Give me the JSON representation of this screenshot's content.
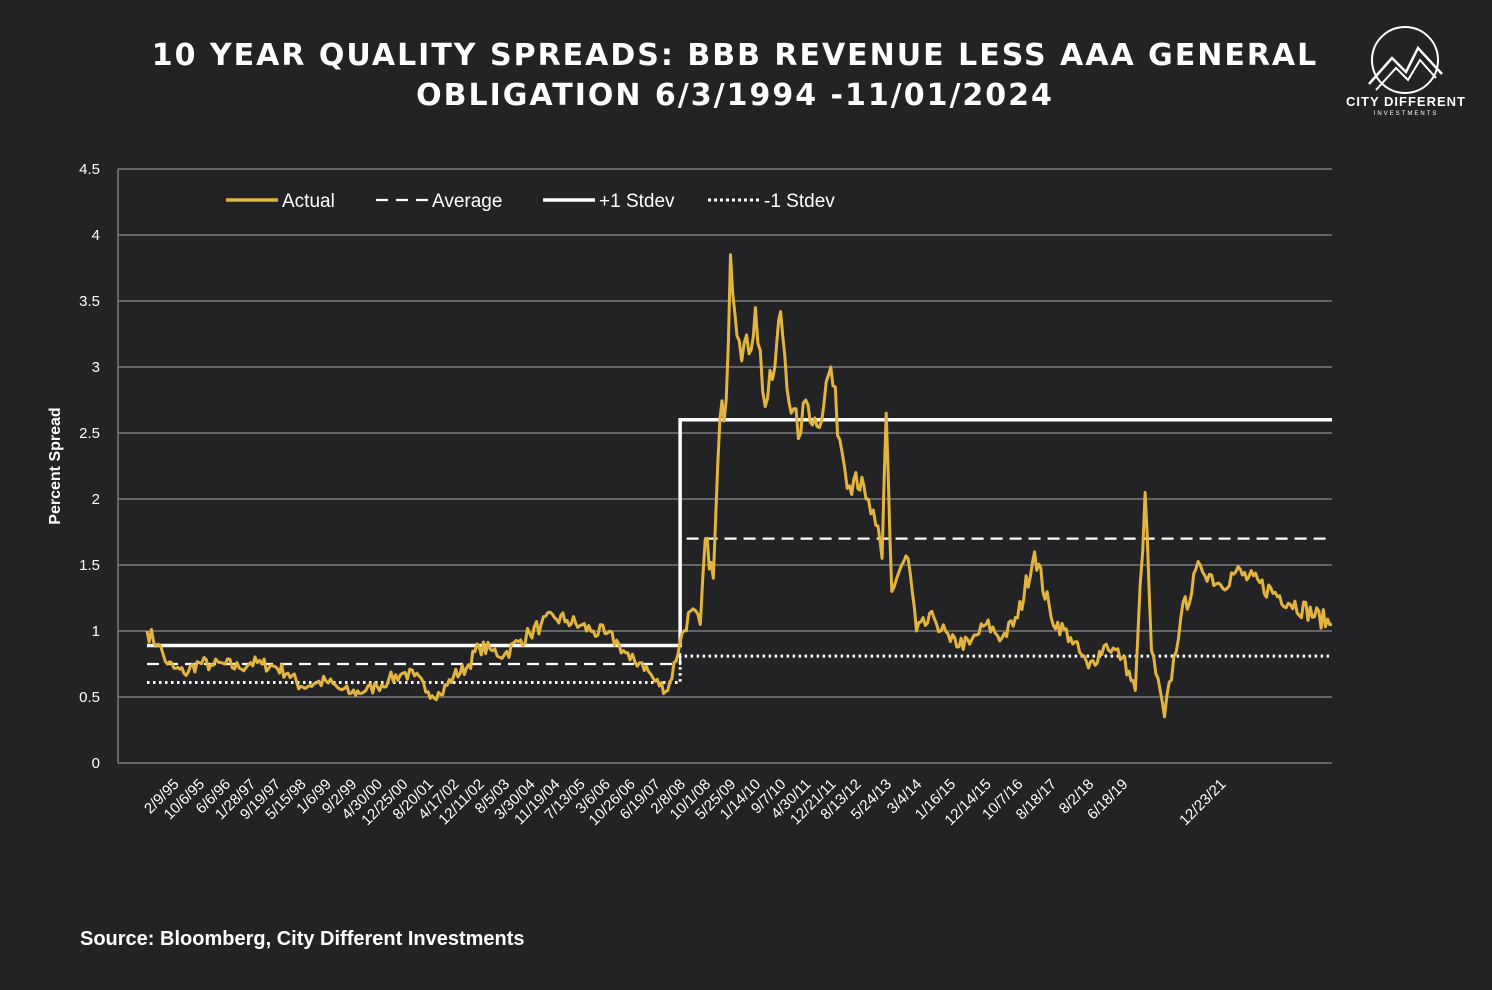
{
  "header": {
    "title_line1": "10 YEAR QUALITY SPREADS: BBB REVENUE LESS AAA GENERAL",
    "title_line2": "OBLIGATION 6/3/1994 -11/01/2024"
  },
  "logo": {
    "name": "CITY DIFFERENT",
    "sub": "INVESTMENTS"
  },
  "footer": {
    "source": "Source: Bloomberg, City Different Investments"
  },
  "colors": {
    "background": "#232326",
    "actual": "#E3B53F",
    "reference": "#FFFFFF",
    "grid": "#8A8A8E"
  },
  "chart_data": {
    "type": "line",
    "ylabel": "Percent Spread",
    "xlabel": "",
    "ylim": [
      0,
      4.5
    ],
    "yticks": [
      "0",
      "0.5",
      "1",
      "1.5",
      "2",
      "2.5",
      "3",
      "3.5",
      "4",
      "4.5"
    ],
    "grid": true,
    "legend_position": "top-left",
    "x_tick_labels": [
      "2/9/95",
      "10/6/95",
      "6/6/96",
      "1/28/97",
      "9/19/97",
      "5/15/98",
      "1/6/99",
      "9/2/99",
      "4/30/00",
      "12/25/00",
      "8/20/01",
      "4/17/02",
      "12/11/02",
      "8/5/03",
      "3/30/04",
      "11/19/04",
      "7/13/05",
      "3/6/06",
      "10/26/06",
      "6/19/07",
      "2/8/08",
      "10/1/08",
      "5/25/09",
      "1/14/10",
      "9/7/10",
      "4/30/11",
      "12/21/11",
      "8/13/12",
      "5/24/13",
      "3/4/14",
      "1/16/15",
      "12/14/15",
      "10/7/16",
      "8/18/17",
      "8/2/18",
      "6/18/19",
      "12/23/21"
    ],
    "series": [
      {
        "name": "Actual",
        "style": "solid",
        "points": [
          [
            "6/3/94",
            1.0
          ],
          [
            "9/94",
            0.9
          ],
          [
            "12/94",
            0.75
          ],
          [
            "2/9/95",
            0.72
          ],
          [
            "5/95",
            0.68
          ],
          [
            "10/6/95",
            0.76
          ],
          [
            "2/96",
            0.74
          ],
          [
            "6/6/96",
            0.75
          ],
          [
            "10/96",
            0.72
          ],
          [
            "1/28/97",
            0.76
          ],
          [
            "5/97",
            0.75
          ],
          [
            "9/19/97",
            0.73
          ],
          [
            "1/98",
            0.68
          ],
          [
            "5/15/98",
            0.58
          ],
          [
            "9/98",
            0.6
          ],
          [
            "1/6/99",
            0.62
          ],
          [
            "5/99",
            0.56
          ],
          [
            "9/2/99",
            0.53
          ],
          [
            "1/00",
            0.55
          ],
          [
            "4/30/00",
            0.58
          ],
          [
            "8/00",
            0.63
          ],
          [
            "12/25/00",
            0.68
          ],
          [
            "4/01",
            0.66
          ],
          [
            "8/20/01",
            0.54
          ],
          [
            "12/01",
            0.52
          ],
          [
            "4/17/02",
            0.66
          ],
          [
            "8/02",
            0.72
          ],
          [
            "12/11/02",
            0.88
          ],
          [
            "4/03",
            0.85
          ],
          [
            "8/5/03",
            0.82
          ],
          [
            "12/03",
            0.92
          ],
          [
            "3/30/04",
            0.98
          ],
          [
            "7/04",
            1.05
          ],
          [
            "11/19/04",
            1.1
          ],
          [
            "3/05",
            1.08
          ],
          [
            "7/13/05",
            1.04
          ],
          [
            "11/05",
            1.0
          ],
          [
            "3/6/06",
            0.98
          ],
          [
            "7/06",
            0.9
          ],
          [
            "10/26/06",
            0.78
          ],
          [
            "2/07",
            0.76
          ],
          [
            "6/19/07",
            0.62
          ],
          [
            "10/07",
            0.55
          ],
          [
            "2/8/08",
            0.92
          ],
          [
            "5/08",
            1.15
          ],
          [
            "8/08",
            1.05
          ],
          [
            "10/1/08",
            1.7
          ],
          [
            "12/08",
            1.4
          ],
          [
            "2/09",
            2.6
          ],
          [
            "4/09",
            2.75
          ],
          [
            "5/25/09",
            3.85
          ],
          [
            "8/09",
            3.2
          ],
          [
            "11/09",
            3.1
          ],
          [
            "1/14/10",
            3.45
          ],
          [
            "4/10",
            2.7
          ],
          [
            "7/10",
            3.0
          ],
          [
            "9/7/10",
            3.42
          ],
          [
            "12/10",
            2.65
          ],
          [
            "3/11",
            2.5
          ],
          [
            "4/30/11",
            2.75
          ],
          [
            "8/11",
            2.55
          ],
          [
            "12/21/11",
            3.0
          ],
          [
            "3/12",
            2.45
          ],
          [
            "6/12",
            2.1
          ],
          [
            "8/13/12",
            2.2
          ],
          [
            "11/12",
            2.0
          ],
          [
            "2/13",
            1.8
          ],
          [
            "4/13",
            1.55
          ],
          [
            "5/24/13",
            2.65
          ],
          [
            "7/13",
            1.3
          ],
          [
            "10/13",
            1.5
          ],
          [
            "12/13",
            1.55
          ],
          [
            "3/4/14",
            1.0
          ],
          [
            "8/14",
            1.1
          ],
          [
            "1/16/15",
            0.92
          ],
          [
            "7/15",
            0.9
          ],
          [
            "12/14/15",
            1.05
          ],
          [
            "5/16",
            0.95
          ],
          [
            "10/7/16",
            1.1
          ],
          [
            "3/17",
            1.6
          ],
          [
            "8/18/17",
            1.1
          ],
          [
            "2/18",
            0.95
          ],
          [
            "8/2/18",
            0.72
          ],
          [
            "1/19",
            0.9
          ],
          [
            "6/18/19",
            0.8
          ],
          [
            "10/19",
            0.55
          ],
          [
            "1/20",
            2.05
          ],
          [
            "3/20",
            0.85
          ],
          [
            "7/20",
            0.35
          ],
          [
            "12/20",
            1.1
          ],
          [
            "6/21",
            1.5
          ],
          [
            "12/23/21",
            1.35
          ],
          [
            "5/22",
            1.45
          ],
          [
            "11/01/24",
            1.05
          ]
        ]
      },
      {
        "name": "Average",
        "style": "dashed",
        "segments": [
          {
            "from": "6/3/94",
            "to": "2/8/08",
            "value": 0.75
          },
          {
            "from": "2/8/08",
            "to": "11/01/24",
            "value": 1.7
          }
        ]
      },
      {
        "name": "+1 Stdev",
        "style": "solid",
        "segments": [
          {
            "from": "6/3/94",
            "to": "2/8/08",
            "value": 0.89
          },
          {
            "from": "2/8/08",
            "to": "11/01/24",
            "value": 2.6
          }
        ]
      },
      {
        "name": "-1 Stdev",
        "style": "dotted",
        "segments": [
          {
            "from": "6/3/94",
            "to": "2/8/08",
            "value": 0.61
          },
          {
            "from": "2/8/08",
            "to": "11/01/24",
            "value": 0.81
          }
        ]
      }
    ]
  }
}
